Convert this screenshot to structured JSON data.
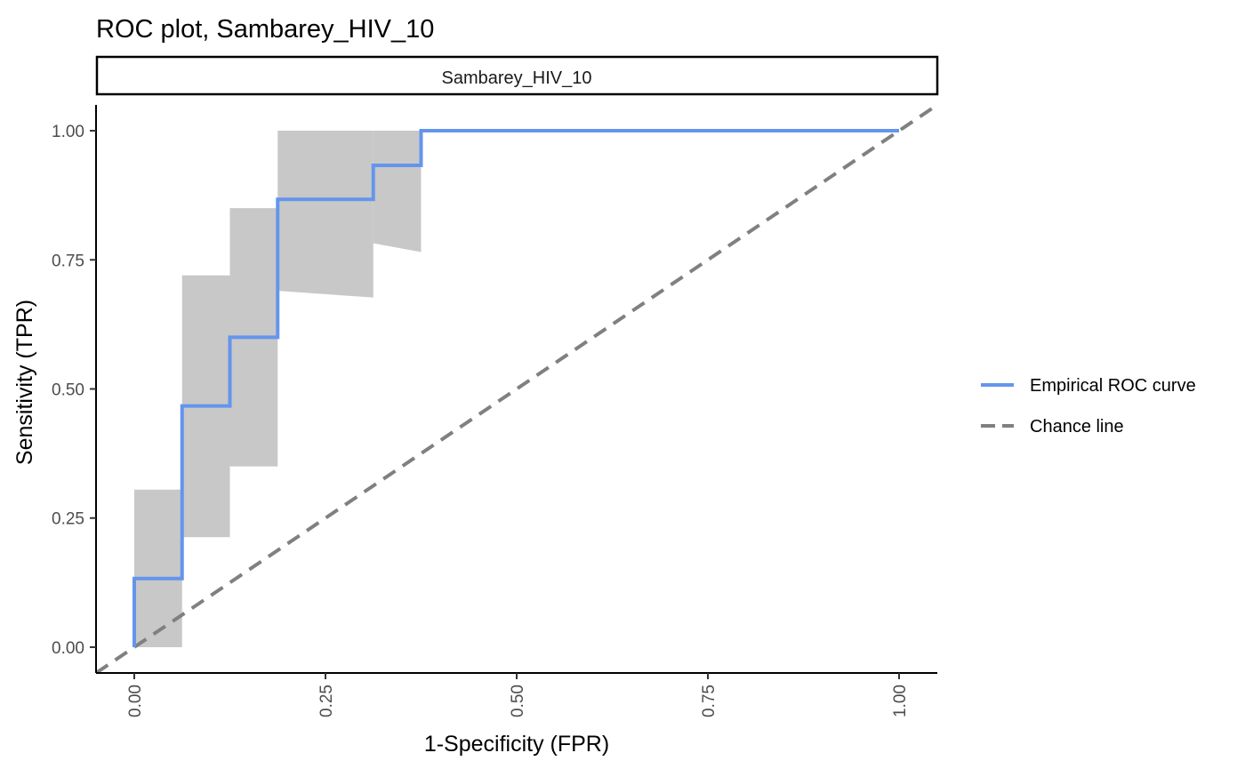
{
  "chart_data": {
    "type": "line",
    "title": "ROC plot, Sambarey_HIV_10",
    "facet_label": "Sambarey_HIV_10",
    "xlabel": "1-Specificity (FPR)",
    "ylabel": "Sensitivity (TPR)",
    "xlim": [
      -0.05,
      1.05
    ],
    "ylim": [
      -0.05,
      1.05
    ],
    "x_ticks": [
      "0.00",
      "0.25",
      "0.50",
      "0.75",
      "1.00"
    ],
    "y_ticks": [
      "0.00",
      "0.25",
      "0.50",
      "0.75",
      "1.00"
    ],
    "x_tick_values": [
      0,
      0.25,
      0.5,
      0.75,
      1
    ],
    "y_tick_values": [
      0,
      0.25,
      0.5,
      0.75,
      1
    ],
    "grid": false,
    "legend_position": "right",
    "series": [
      {
        "name": "Empirical ROC curve",
        "color": "#6495ED",
        "style": "solid",
        "x": [
          0,
          0,
          0.0625,
          0.0625,
          0.125,
          0.125,
          0.1875,
          0.1875,
          0.3125,
          0.3125,
          0.375,
          0.375,
          1
        ],
        "y": [
          0,
          0.133,
          0.133,
          0.467,
          0.467,
          0.6,
          0.6,
          0.867,
          0.867,
          0.933,
          0.933,
          1,
          1
        ]
      },
      {
        "name": "Chance line",
        "color": "#808080",
        "style": "dashed",
        "x": [
          -0.05,
          1.05
        ],
        "y": [
          -0.05,
          1.05
        ]
      }
    ],
    "confidence_band": {
      "color": "#C8C8C8",
      "boxes": [
        {
          "x0": 0,
          "x1": 0.0625,
          "ymin": 0,
          "ymax": 0.305
        },
        {
          "x0": 0.0625,
          "x1": 0.125,
          "ymin": 0.213,
          "ymax": 0.72
        },
        {
          "x0": 0.125,
          "x1": 0.1875,
          "ymin": 0.35,
          "ymax": 0.85
        },
        {
          "x0": 0.1875,
          "x1": 0.3125,
          "ymin_start": 0.69,
          "ymin_end": 0.677,
          "ymax": 1
        },
        {
          "x0": 0.3125,
          "x1": 0.375,
          "ymin_start": 0.782,
          "ymin_end": 0.765,
          "ymax": 1
        }
      ]
    }
  }
}
